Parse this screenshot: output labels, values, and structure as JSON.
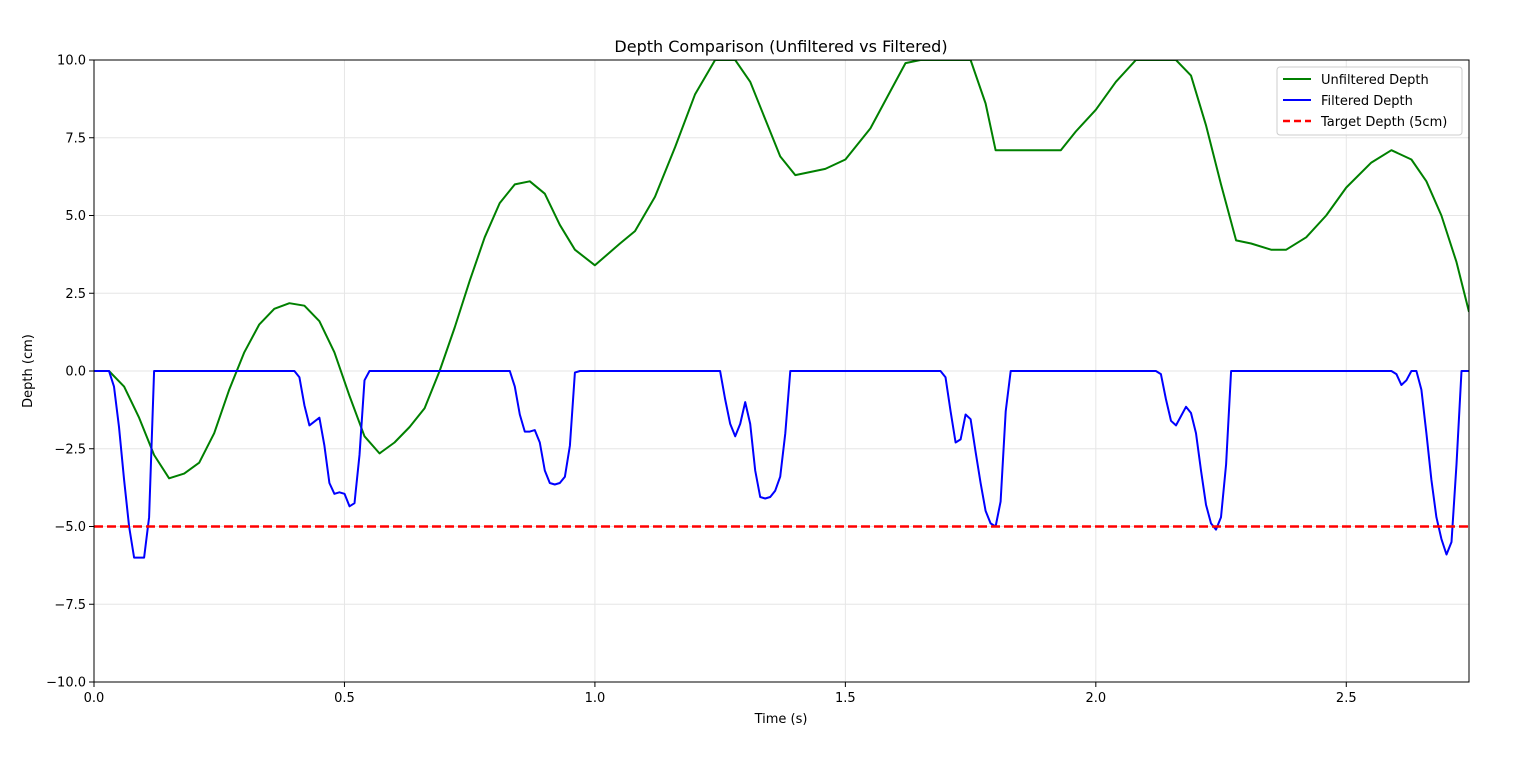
{
  "chart_data": {
    "type": "line",
    "title": "Depth Comparison (Unfiltered vs Filtered)",
    "xlabel": "Time (s)",
    "ylabel": "Depth (cm)",
    "xlim": [
      0.0,
      2.745
    ],
    "ylim": [
      -10.0,
      10.0
    ],
    "xticks": [
      0.0,
      0.5,
      1.0,
      1.5,
      2.0,
      2.5
    ],
    "xtick_labels": [
      "0.0",
      "0.5",
      "1.0",
      "1.5",
      "2.0",
      "2.5"
    ],
    "yticks": [
      -10.0,
      -7.5,
      -5.0,
      -2.5,
      0.0,
      2.5,
      5.0,
      7.5,
      10.0
    ],
    "ytick_labels": [
      "−10.0",
      "−7.5",
      "−5.0",
      "−2.5",
      "0.0",
      "2.5",
      "5.0",
      "7.5",
      "10.0"
    ],
    "grid": true,
    "legend_position": "top-right",
    "series": [
      {
        "name": "Unfiltered Depth",
        "color": "#008000",
        "style": "solid",
        "x": [
          0.0,
          0.03,
          0.06,
          0.09,
          0.12,
          0.15,
          0.18,
          0.21,
          0.24,
          0.27,
          0.3,
          0.33,
          0.36,
          0.39,
          0.42,
          0.45,
          0.48,
          0.51,
          0.54,
          0.57,
          0.6,
          0.63,
          0.66,
          0.69,
          0.72,
          0.75,
          0.78,
          0.81,
          0.84,
          0.87,
          0.9,
          0.93,
          0.96,
          1.0,
          1.05,
          1.08,
          1.12,
          1.16,
          1.2,
          1.24,
          1.28,
          1.31,
          1.34,
          1.37,
          1.4,
          1.43,
          1.46,
          1.5,
          1.55,
          1.59,
          1.62,
          1.65,
          1.7,
          1.75,
          1.78,
          1.8,
          1.83,
          1.86,
          1.87,
          1.93,
          1.96,
          2.0,
          2.04,
          2.08,
          2.12,
          2.16,
          2.19,
          2.22,
          2.25,
          2.28,
          2.31,
          2.35,
          2.38,
          2.42,
          2.46,
          2.5,
          2.55,
          2.59,
          2.63,
          2.66,
          2.69,
          2.72,
          2.745
        ],
        "y": [
          0.0,
          0.0,
          -0.5,
          -1.5,
          -2.7,
          -3.45,
          -3.3,
          -2.95,
          -2.0,
          -0.6,
          0.6,
          1.5,
          2.0,
          2.18,
          2.1,
          1.6,
          0.6,
          -0.8,
          -2.1,
          -2.65,
          -2.3,
          -1.8,
          -1.2,
          0.0,
          1.4,
          2.9,
          4.3,
          5.4,
          6.0,
          6.1,
          5.7,
          4.7,
          3.9,
          3.4,
          4.1,
          4.5,
          5.6,
          7.2,
          8.9,
          10.0,
          10.0,
          9.3,
          8.1,
          6.9,
          6.3,
          6.4,
          6.5,
          6.8,
          7.8,
          9.0,
          9.9,
          10.0,
          10.0,
          10.0,
          8.6,
          7.1,
          7.1,
          7.1,
          7.1,
          7.1,
          7.7,
          8.4,
          9.3,
          10.0,
          10.0,
          10.0,
          9.5,
          7.9,
          6.0,
          4.2,
          4.1,
          3.9,
          3.9,
          4.3,
          5.0,
          5.9,
          6.7,
          7.1,
          6.8,
          6.1,
          5.0,
          3.5,
          1.9
        ]
      },
      {
        "name": "Filtered Depth",
        "color": "#0000ff",
        "style": "solid",
        "x": [
          0.0,
          0.03,
          0.04,
          0.05,
          0.06,
          0.07,
          0.08,
          0.1,
          0.11,
          0.12,
          0.4,
          0.41,
          0.42,
          0.43,
          0.45,
          0.46,
          0.47,
          0.48,
          0.49,
          0.5,
          0.51,
          0.52,
          0.53,
          0.54,
          0.55,
          0.83,
          0.84,
          0.85,
          0.86,
          0.87,
          0.88,
          0.89,
          0.9,
          0.91,
          0.92,
          0.93,
          0.94,
          0.95,
          0.96,
          0.97,
          1.25,
          1.26,
          1.27,
          1.28,
          1.29,
          1.3,
          1.31,
          1.32,
          1.33,
          1.34,
          1.35,
          1.36,
          1.37,
          1.38,
          1.39,
          1.69,
          1.7,
          1.71,
          1.72,
          1.73,
          1.74,
          1.75,
          1.76,
          1.77,
          1.78,
          1.79,
          1.8,
          1.81,
          1.82,
          1.83,
          2.12,
          2.13,
          2.14,
          2.15,
          2.16,
          2.17,
          2.18,
          2.19,
          2.2,
          2.21,
          2.22,
          2.23,
          2.24,
          2.25,
          2.26,
          2.27,
          2.59,
          2.6,
          2.61,
          2.62,
          2.63,
          2.64,
          2.65,
          2.66,
          2.67,
          2.68,
          2.69,
          2.7,
          2.71,
          2.72,
          2.73,
          2.74,
          2.745
        ],
        "y": [
          0.0,
          0.0,
          -0.5,
          -1.8,
          -3.5,
          -5.0,
          -6.0,
          -6.0,
          -4.7,
          0.0,
          0.0,
          -0.2,
          -1.1,
          -1.75,
          -1.5,
          -2.4,
          -3.6,
          -3.95,
          -3.9,
          -3.95,
          -4.35,
          -4.25,
          -2.7,
          -0.3,
          0.0,
          0.0,
          -0.5,
          -1.4,
          -1.95,
          -1.95,
          -1.9,
          -2.3,
          -3.2,
          -3.6,
          -3.65,
          -3.6,
          -3.4,
          -2.4,
          -0.05,
          0.0,
          0.0,
          -0.9,
          -1.7,
          -2.1,
          -1.7,
          -1.0,
          -1.7,
          -3.2,
          -4.05,
          -4.1,
          -4.05,
          -3.85,
          -3.4,
          -2.0,
          0.0,
          0.0,
          -0.2,
          -1.3,
          -2.3,
          -2.2,
          -1.4,
          -1.55,
          -2.6,
          -3.6,
          -4.5,
          -4.9,
          -5.0,
          -4.2,
          -1.3,
          0.0,
          0.0,
          -0.1,
          -0.9,
          -1.6,
          -1.75,
          -1.45,
          -1.15,
          -1.35,
          -2.0,
          -3.2,
          -4.3,
          -4.9,
          -5.1,
          -4.7,
          -3.0,
          0.0,
          0.0,
          -0.1,
          -0.45,
          -0.3,
          0.0,
          0.0,
          -0.6,
          -2.0,
          -3.5,
          -4.7,
          -5.4,
          -5.9,
          -5.5,
          -3.0,
          0.0,
          0.0,
          0.0
        ]
      },
      {
        "name": "Target Depth (5cm)",
        "color": "#ff0000",
        "style": "dashed",
        "x": [
          0.0,
          2.745
        ],
        "y": [
          -5.0,
          -5.0
        ]
      }
    ]
  }
}
